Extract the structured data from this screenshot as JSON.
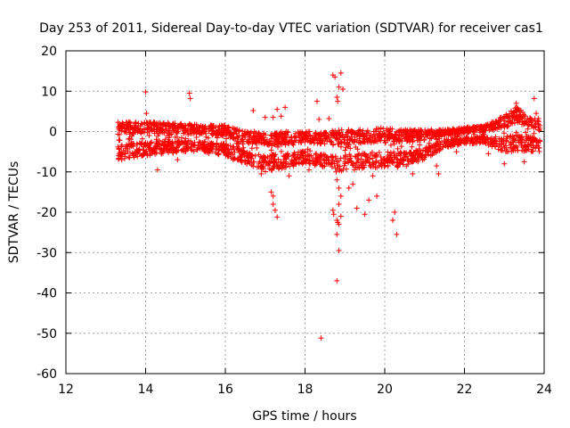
{
  "chart_data": {
    "type": "scatter",
    "title": "Day 253 of 2011, Sidereal Day-to-day VTEC variation (SDTVAR) for receiver cas1",
    "xlabel": "GPS time / hours",
    "ylabel": "SDTVAR / TECUs",
    "xlim": [
      12,
      24
    ],
    "ylim": [
      -60,
      20
    ],
    "xticks": [
      12,
      14,
      16,
      18,
      20,
      22,
      24
    ],
    "yticks": [
      -60,
      -50,
      -40,
      -30,
      -20,
      -10,
      0,
      10,
      20
    ],
    "grid": true,
    "marker": "+",
    "color": "#ff0000",
    "series": [
      {
        "name": "cas1",
        "dense_band": {
          "x_range": [
            13.3,
            23.9
          ],
          "profile": [
            {
              "x": 13.3,
              "lo": -7,
              "hi": 2.5
            },
            {
              "x": 14.0,
              "lo": -6,
              "hi": 2.5
            },
            {
              "x": 15.0,
              "lo": -5,
              "hi": 2
            },
            {
              "x": 16.0,
              "lo": -6,
              "hi": 1.5
            },
            {
              "x": 16.5,
              "lo": -8,
              "hi": 0
            },
            {
              "x": 17.0,
              "lo": -10,
              "hi": 0
            },
            {
              "x": 17.5,
              "lo": -9,
              "hi": 0
            },
            {
              "x": 18.0,
              "lo": -8,
              "hi": 0
            },
            {
              "x": 18.5,
              "lo": -9,
              "hi": 0
            },
            {
              "x": 19.0,
              "lo": -10,
              "hi": 0.5
            },
            {
              "x": 19.5,
              "lo": -9,
              "hi": 0.5
            },
            {
              "x": 20.0,
              "lo": -9,
              "hi": 1
            },
            {
              "x": 20.5,
              "lo": -9,
              "hi": 0.5
            },
            {
              "x": 21.0,
              "lo": -7,
              "hi": 0.5
            },
            {
              "x": 21.5,
              "lo": -4,
              "hi": 0.5
            },
            {
              "x": 22.0,
              "lo": -3,
              "hi": 1
            },
            {
              "x": 22.5,
              "lo": -3,
              "hi": 1.5
            },
            {
              "x": 23.0,
              "lo": -5,
              "hi": 4
            },
            {
              "x": 23.3,
              "lo": -5,
              "hi": 6
            },
            {
              "x": 23.9,
              "lo": -5,
              "hi": 3
            }
          ]
        },
        "x": [
          14.0,
          14.02,
          15.1,
          15.12,
          16.7,
          17.0,
          17.2,
          17.3,
          17.4,
          17.5,
          17.15,
          17.2,
          17.25,
          17.3,
          17.2,
          18.3,
          18.35,
          18.6,
          18.7,
          18.75,
          18.8,
          18.82,
          18.85,
          18.9,
          18.95,
          18.78,
          18.8,
          18.85,
          18.9,
          18.7,
          18.72,
          18.8,
          18.82,
          18.85,
          18.9,
          18.8,
          18.85,
          18.8,
          18.4,
          18.85,
          19.1,
          19.2,
          19.3,
          19.5,
          19.6,
          19.8,
          20.2,
          20.25,
          20.3,
          21.3,
          21.35,
          23.75,
          23.8,
          23.85,
          23.3,
          23.2
        ],
        "y": [
          9.8,
          4.5,
          9.5,
          8.2,
          5.2,
          3.5,
          3.5,
          5.5,
          3.8,
          6.0,
          -15,
          -18,
          -19.5,
          -21.2,
          -16,
          7.5,
          3,
          3.2,
          14,
          13.5,
          8.5,
          7.5,
          11,
          14.5,
          10.5,
          -10,
          -12,
          -14,
          -16,
          -19.5,
          -20.5,
          -22,
          -22.5,
          -23,
          -21,
          -25.5,
          -29.5,
          -37,
          -51.2,
          -18,
          -14,
          -13,
          -19,
          -20.5,
          -17,
          -16,
          -22,
          -20,
          -25.5,
          -8.5,
          -10.5,
          8.2,
          4.5,
          2.5,
          7,
          2
        ],
        "background_extra": {
          "x": [
            13.4,
            13.6,
            14.3,
            14.8,
            15.5,
            16.2,
            16.9,
            17.6,
            18.1,
            19.7,
            20.7,
            21.8,
            22.6,
            23.0,
            23.5
          ],
          "y": [
            -7,
            -6.5,
            -9.5,
            -7,
            -5,
            -7,
            -10.5,
            -11,
            -9.5,
            -11,
            -10.5,
            -5,
            -5.5,
            -8,
            -7.5
          ]
        }
      }
    ]
  }
}
